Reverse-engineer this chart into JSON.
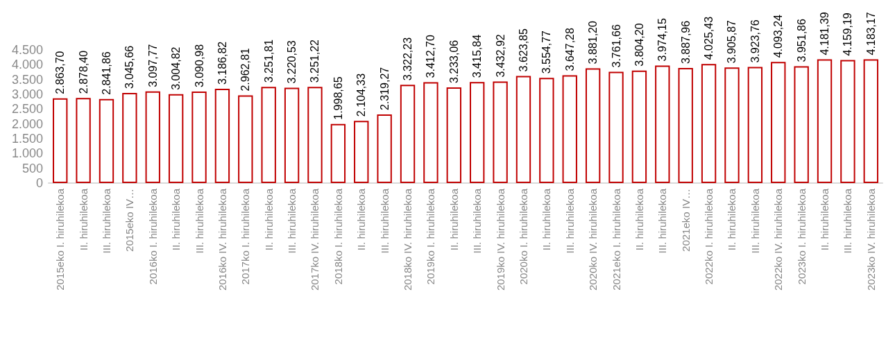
{
  "chart_data": {
    "type": "bar",
    "categories": [
      "2015eko I. hiruhilekoa",
      "II. hiruhilekoa",
      "III. hiruhilekoa",
      "2015eko IV…",
      "2016ko I. hiruhilekoa",
      "II. hiruhilekoa",
      "III. hiruhilekoa",
      "2016ko IV. hiruhilekoa",
      "2017ko I. hiruhilekoa",
      "II. hiruhilekoa",
      "III. hiruhilekoa",
      "2017ko IV. hiruhilekoa",
      "2018ko I. hiruhilekoa",
      "II. hiruhilekoa",
      "III. hiruhilekoa",
      "2018ko IV. hiruhilekoa",
      "2019ko I. hiruhilekoa",
      "II. hiruhilekoa",
      "III. hiruhilekoa",
      "2019ko IV. hiruhilekoa",
      "2020ko I. hiruhilekoa",
      "II. hiruhilekoa",
      "III. hiruhilekoa",
      "2020ko IV. hiruhilekoa",
      "2021eko I. hiruhilekoa",
      "II. hiruhilekoa",
      "III. hiruhilekoa",
      "2021eko IV…",
      "2022ko I. hiruhilekoa",
      "II. hiruhilekoa",
      "III. hiruhilekoa",
      "2022ko IV. hiruhilekoa",
      "2023ko I. hiruhilekoa",
      "II. hiruhilekoa",
      "III. hiruhilekoa",
      "2023ko IV. hiruhilekoa"
    ],
    "values": [
      2863.7,
      2878.4,
      2841.86,
      3045.66,
      3097.77,
      3004.82,
      3090.98,
      3186.82,
      2962.81,
      3251.81,
      3220.53,
      3251.22,
      1998.65,
      2104.33,
      2319.27,
      3322.23,
      3412.7,
      3233.06,
      3415.84,
      3432.92,
      3623.85,
      3554.77,
      3647.28,
      3881.2,
      3761.66,
      3804.2,
      3974.15,
      3887.96,
      4025.43,
      3905.87,
      3923.76,
      4093.24,
      3951.86,
      4181.39,
      4159.19,
      4183.17
    ],
    "value_labels": [
      "2.863,70",
      "2.878,40",
      "2.841,86",
      "3.045,66",
      "3.097,77",
      "3.004,82",
      "3.090,98",
      "3.186,82",
      "2.962,81",
      "3.251,81",
      "3.220,53",
      "3.251,22",
      "1.998,65",
      "2.104,33",
      "2.319,27",
      "3.322,23",
      "3.412,70",
      "3.233,06",
      "3.415,84",
      "3.432,92",
      "3.623,85",
      "3.554,77",
      "3.647,28",
      "3.881,20",
      "3.761,66",
      "3.804,20",
      "3.974,15",
      "3.887,96",
      "4.025,43",
      "3.905,87",
      "3.923,76",
      "4.093,24",
      "3.951,86",
      "4.181,39",
      "4.159,19",
      "4.183,17"
    ],
    "color": "#c00000",
    "ylim": [
      0,
      4500
    ],
    "yticks": [
      0,
      500,
      {
        "value": 1000,
        "label": "1.000"
      },
      {
        "value": 1500,
        "label": "1.500"
      },
      {
        "value": 2000,
        "label": "2.000"
      },
      {
        "value": 2500,
        "label": "2.500"
      },
      {
        "value": 3000,
        "label": "3.000"
      },
      {
        "value": 3500,
        "label": "3.500"
      },
      {
        "value": 4000,
        "label": "4.000"
      },
      {
        "value": 4500,
        "label": "4.500"
      }
    ],
    "grid": false
  }
}
